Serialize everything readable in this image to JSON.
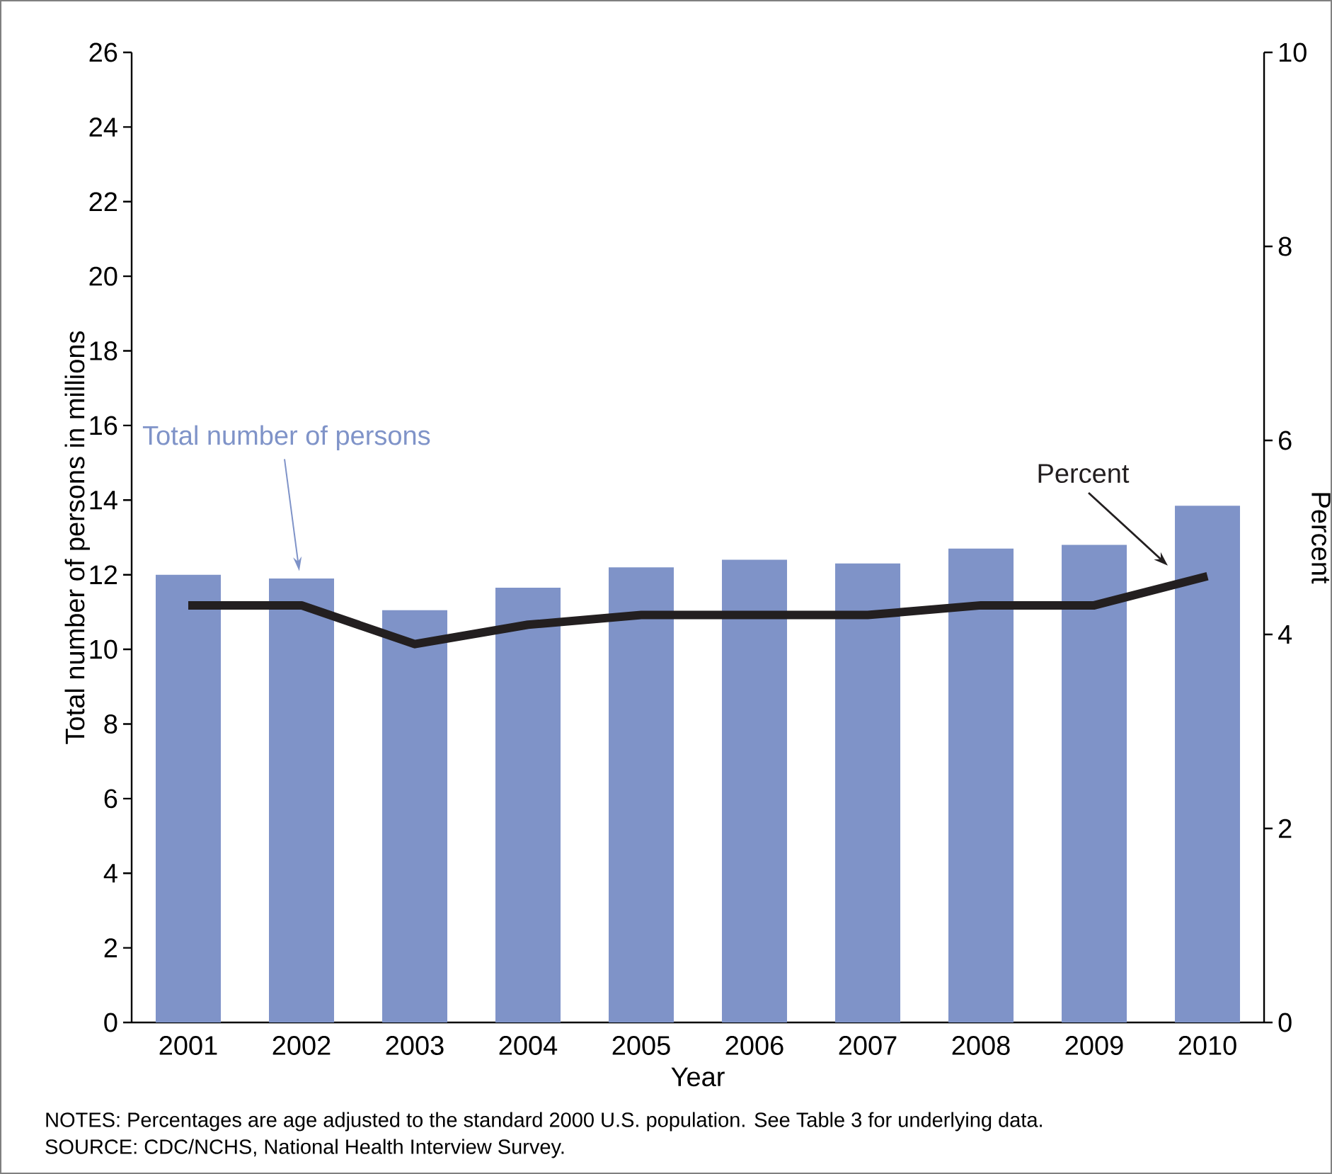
{
  "chart_data": {
    "type": "bar",
    "categories": [
      "2001",
      "2002",
      "2003",
      "2004",
      "2005",
      "2006",
      "2007",
      "2008",
      "2009",
      "2010"
    ],
    "series": [
      {
        "name": "Total number of persons",
        "color": "#7f93c8",
        "values": [
          12.0,
          11.9,
          11.05,
          11.65,
          12.2,
          12.4,
          12.3,
          12.7,
          12.8,
          13.85
        ]
      },
      {
        "name": "Percent",
        "type": "line",
        "axis": "y2",
        "color": "#231f20",
        "values": [
          4.3,
          4.3,
          3.9,
          4.1,
          4.2,
          4.2,
          4.2,
          4.3,
          4.3,
          4.6
        ]
      }
    ],
    "xlabel": "Year",
    "ylabel": "Total number of persons in millions",
    "y2label": "Percent",
    "ylim": [
      0,
      26
    ],
    "yticks": [
      0,
      2,
      4,
      6,
      8,
      10,
      12,
      14,
      16,
      18,
      20,
      22,
      24,
      26
    ],
    "y2lim": [
      0,
      10
    ],
    "y2ticks": [
      0,
      2,
      4,
      6,
      8,
      10
    ],
    "annotations": [
      "NOTES: Percentages are age adjusted to the standard 2000 U.S. population.  See Table 3 for underlying data.",
      "SOURCE: CDC/NCHS, National Health Interview Survey."
    ]
  }
}
